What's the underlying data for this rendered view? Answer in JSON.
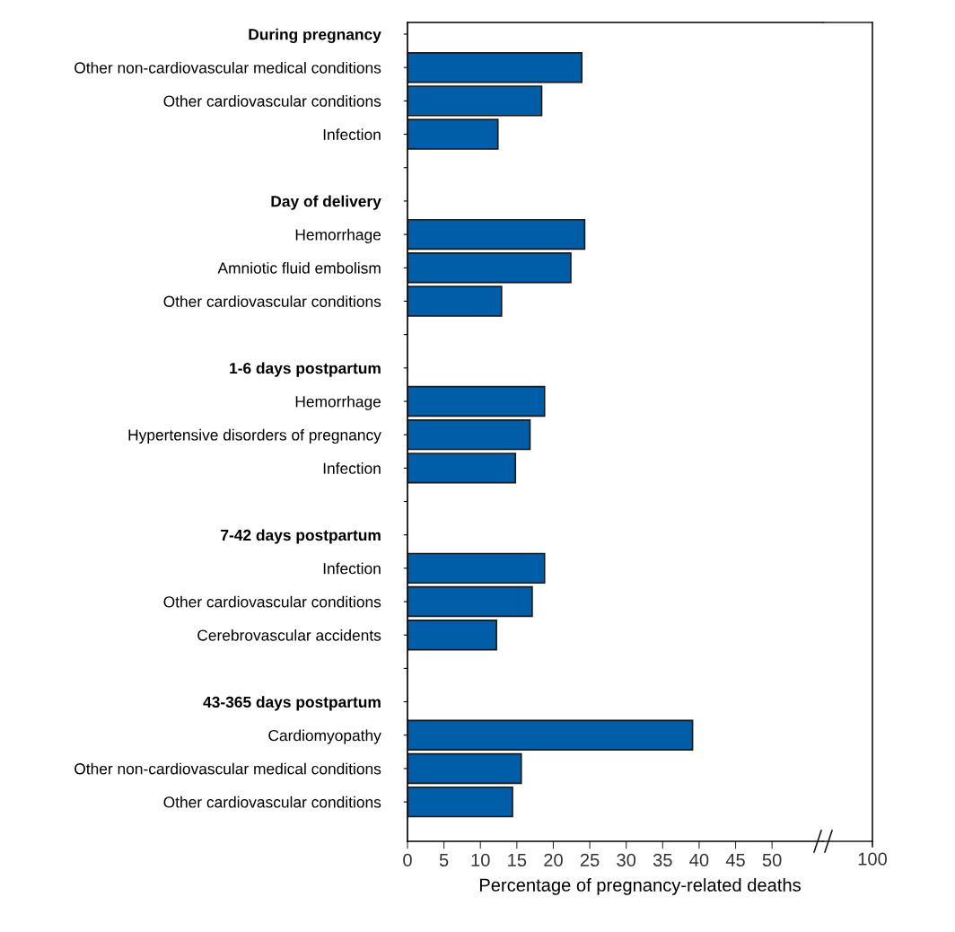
{
  "chart_data": {
    "type": "bar",
    "orientation": "horizontal",
    "xlabel": "Percentage of pregnancy-related deaths",
    "color": "#005ea8",
    "categories": [
      "During pregnancy",
      "Other non-cardiovascular medical conditions",
      "Other cardiovascular conditions",
      "Infection",
      null,
      "Day of delivery",
      "Hemorrhage",
      "Amniotic fluid embolism",
      "Other cardiovascular conditions",
      null,
      "1-6 days postpartum",
      "Hemorrhage",
      "Hypertensive disorders of pregnancy",
      "Infection",
      null,
      "7-42 days postpartum",
      "Infection",
      "Other cardiovascular conditions",
      "Cerebrovascular accidents",
      null,
      "43-365 days postpartum",
      "Cardiomyopathy",
      "Other non-cardiovascular medical conditions",
      "Other cardiovascular conditions"
    ],
    "values": [
      null,
      23.9,
      18.4,
      12.4,
      null,
      null,
      24.3,
      22.4,
      12.9,
      null,
      null,
      18.8,
      16.8,
      14.8,
      null,
      null,
      18.8,
      17.1,
      12.2,
      null,
      null,
      39.1,
      15.6,
      14.4
    ],
    "xlim": [
      0,
      57
    ],
    "xticks": [
      0,
      5,
      10,
      15,
      20,
      25,
      30,
      35,
      40,
      45,
      50
    ],
    "annotations": [
      "100"
    ],
    "grid": false,
    "legend": false
  }
}
